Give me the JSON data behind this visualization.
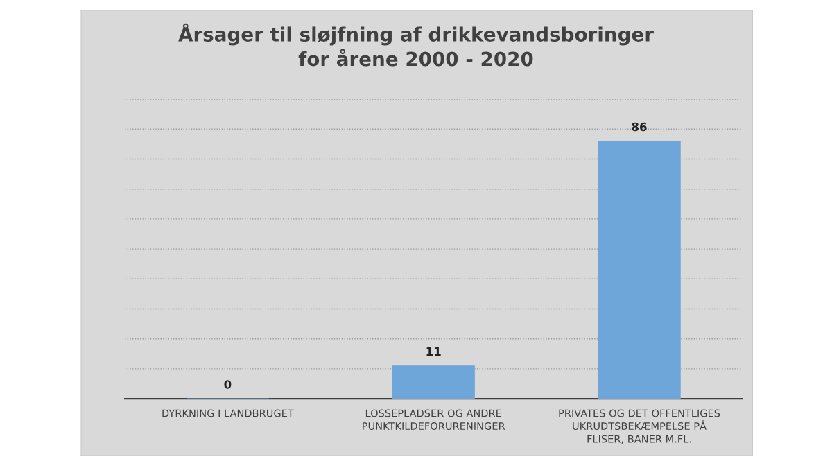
{
  "chart_data": {
    "type": "bar",
    "title": "Årsager til sløjfning af drikkevandsboringer for årene 2000 - 2020",
    "categories": [
      "DYRKNING I LANDBRUGET",
      "LOSSEPLADSER OG ANDRE PUNKTKILDEFORURENINGER",
      "PRIVATES OG DET OFFENTLIGES UKRUDTSBEKÆMPELSE PÅ FLISER, BANER M.FL."
    ],
    "values": [
      0,
      11,
      86
    ],
    "color": "#6fa6d9",
    "ylim": [
      0,
      100
    ],
    "yticks": [
      {
        "value": 0,
        "label": null
      },
      {
        "value": 10,
        "label": null
      },
      {
        "value": 20,
        "label": null
      },
      {
        "value": 30,
        "label": null
      },
      {
        "value": 40,
        "label": null
      },
      {
        "value": 50,
        "label": null
      },
      {
        "value": 60,
        "label": null
      },
      {
        "value": 70,
        "label": null
      },
      {
        "value": 80,
        "label": null
      },
      {
        "value": 90,
        "label": null
      },
      {
        "value": 100,
        "label": null
      }
    ],
    "tick_labels": "x",
    "grid": "y",
    "data_labels": true,
    "legend": false
  }
}
